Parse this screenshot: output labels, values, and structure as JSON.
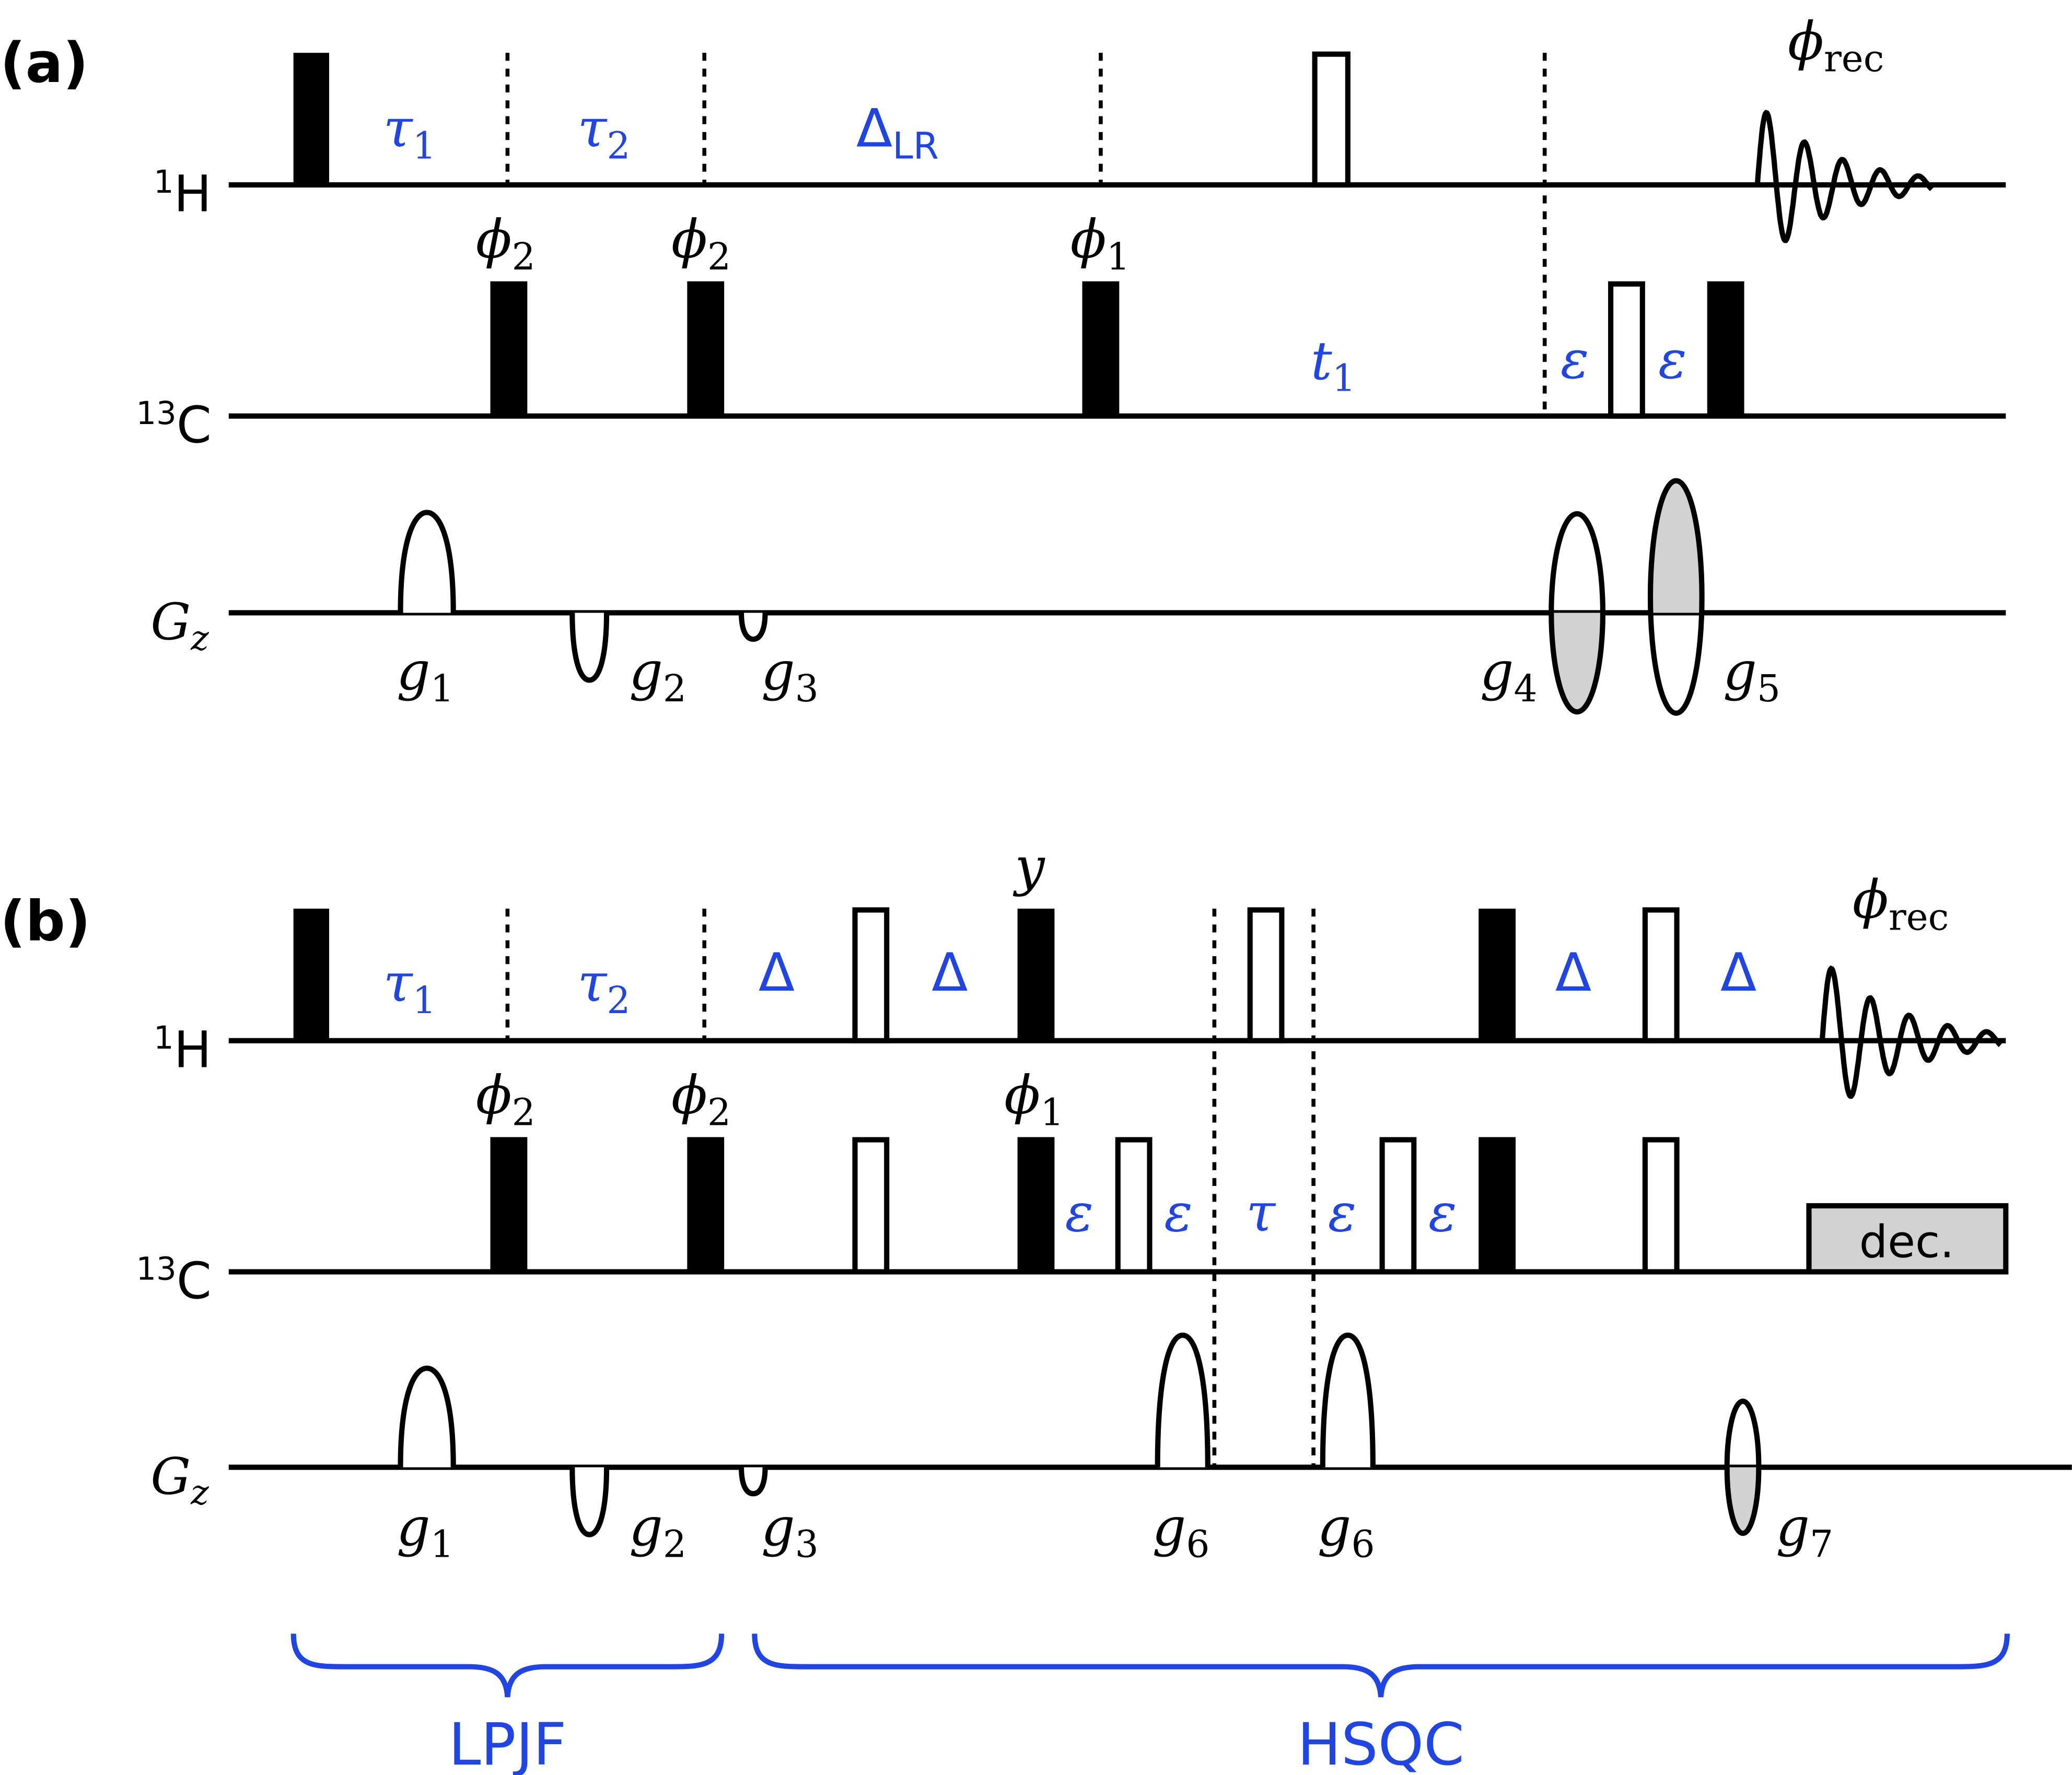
{
  "panels": [
    {
      "label": "(a)",
      "channels": {
        "h": "1H",
        "c": "13C",
        "g": "Gz"
      },
      "h_delays": [
        "τ1",
        "τ2",
        "ΔLR"
      ],
      "c_delays": [
        "t1",
        "ε",
        "ε"
      ],
      "phases": [
        "ϕ2",
        "ϕ2",
        "ϕ1"
      ],
      "receiver": "ϕrec",
      "gradients": [
        "g1",
        "g2",
        "g3",
        "g4",
        "g5"
      ]
    },
    {
      "label": "(b)",
      "channels": {
        "h": "1H",
        "c": "13C",
        "g": "Gz"
      },
      "h_delays": [
        "τ1",
        "τ2",
        "Δ",
        "Δ",
        "Δ",
        "Δ"
      ],
      "c_delays": [
        "ε",
        "ε",
        "τ",
        "ε",
        "ε"
      ],
      "phases": [
        "ϕ2",
        "ϕ2",
        "ϕ1",
        "y"
      ],
      "receiver": "ϕrec",
      "decoupling": "dec.",
      "gradients": [
        "g1",
        "g2",
        "g3",
        "g6",
        "g6",
        "g7"
      ]
    }
  ],
  "blocks": [
    "LPJF",
    "HSQC"
  ],
  "colors": {
    "ink": "#000000",
    "blue": "#1f45e6",
    "gray": "#d2d2d2"
  }
}
